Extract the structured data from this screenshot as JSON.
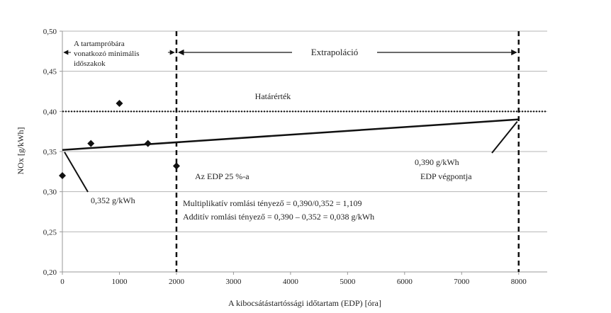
{
  "colors": {
    "background": "#ffffff",
    "gridline": "#b5b5b5",
    "axis": "#999999",
    "marker": "#111111",
    "trendline": "#111111",
    "limit_line": "#111111",
    "vertical_lines": "#111111",
    "text": "#222222"
  },
  "chart_data": {
    "type": "scatter",
    "title": "",
    "xlabel": "A kibocsátástartóssági időtartam (EDP) [óra]",
    "ylabel": "NOx [g/kWh]",
    "xlim": [
      0,
      8500
    ],
    "ylim": [
      0.2,
      0.5
    ],
    "grid": true,
    "x_ticks": [
      0,
      1000,
      2000,
      3000,
      4000,
      5000,
      6000,
      7000,
      8000
    ],
    "x_tick_labels": [
      "0",
      "1000",
      "2000",
      "3000",
      "4000",
      "5000",
      "6000",
      "7000",
      "8000"
    ],
    "y_ticks": [
      0.2,
      0.25,
      0.3,
      0.35,
      0.4,
      0.45,
      0.5
    ],
    "y_tick_labels": [
      "0,20",
      "0,25",
      "0,30",
      "0,35",
      "0,40",
      "0,45",
      "0,50"
    ],
    "points": [
      {
        "x": 0,
        "y": 0.32
      },
      {
        "x": 500,
        "y": 0.36
      },
      {
        "x": 1000,
        "y": 0.41
      },
      {
        "x": 1500,
        "y": 0.36
      },
      {
        "x": 2000,
        "y": 0.332
      }
    ],
    "trendline": {
      "x0": 0,
      "y0": 0.352,
      "x1": 8000,
      "y1": 0.39
    },
    "limit_value": 0.4,
    "vertical_lines": [
      2000,
      8000
    ],
    "annotations": {
      "limit_label": "Határérték",
      "extrapolation_label": "Extrapoláció",
      "min_periods_label_line1": "A tartampróbára",
      "min_periods_label_line2": "vonatkozó minimális",
      "min_periods_label_line3": "időszakok",
      "start_value_label": "0,352 g/kWh",
      "end_value_label": "0,390 g/kWh",
      "end_point_label": "EDP végpontja",
      "edp25_label": "Az EDP 25 %-a",
      "multiplicative_label": "Multiplikatív romlási tényező = 0,390/0,352 = 1,109",
      "additive_label": "Additív romlási tényező = 0,390 – 0,352 = 0,038 g/kWh"
    }
  }
}
